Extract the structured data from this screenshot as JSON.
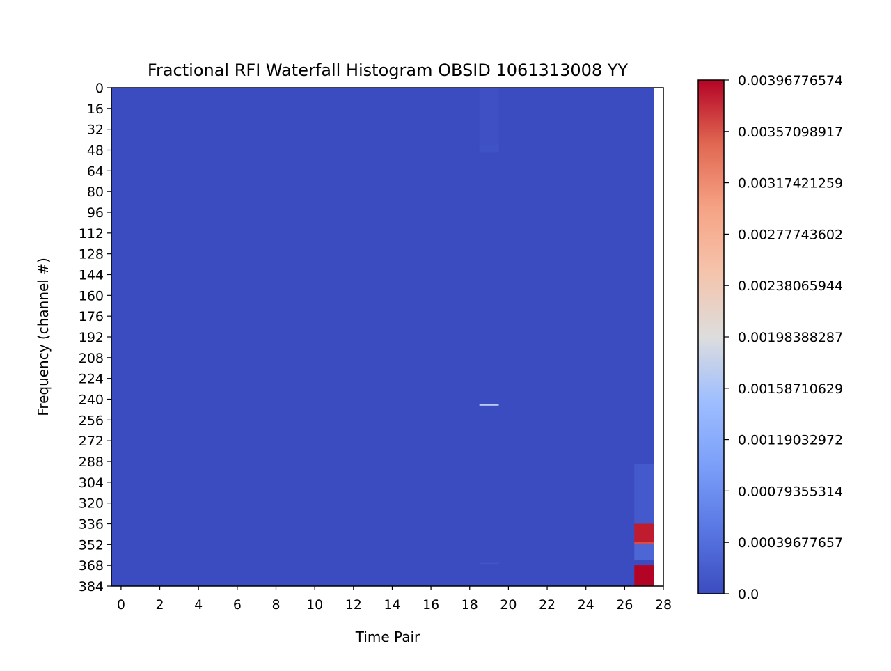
{
  "chart_data": {
    "type": "heatmap",
    "title": "Fractional RFI Waterfall Histogram OBSID 1061313008 YY",
    "xlabel": "Time Pair",
    "ylabel": "Frequency (channel #)",
    "x_ticks": [
      "0",
      "2",
      "4",
      "6",
      "8",
      "10",
      "12",
      "14",
      "16",
      "18",
      "20",
      "22",
      "24",
      "26",
      "28"
    ],
    "y_ticks": [
      "0",
      "16",
      "32",
      "48",
      "64",
      "80",
      "96",
      "112",
      "128",
      "144",
      "160",
      "176",
      "192",
      "208",
      "224",
      "240",
      "256",
      "272",
      "288",
      "304",
      "320",
      "336",
      "352",
      "368",
      "384"
    ],
    "xlim": [
      -0.5,
      28
    ],
    "ylim": [
      384,
      0
    ],
    "n_time_pairs": 28,
    "n_channels": 384,
    "colormap": "coolwarm",
    "colorbar": {
      "min": 0.0,
      "max": 0.00396776574,
      "ticks": [
        "0.0",
        "0.00039677657",
        "0.00079355314",
        "0.00119032972",
        "0.00158710629",
        "0.00198388287",
        "0.00238065944",
        "0.00277743602",
        "0.00317421259",
        "0.00357098917",
        "0.00396776574"
      ]
    },
    "background_value": 0.0,
    "cells": [
      {
        "time_pair": 19,
        "channel_start": 0,
        "channel_end": 48,
        "value": 5e-05
      },
      {
        "time_pair": 19,
        "channel_start": 44,
        "channel_end": 50,
        "value": 8e-05
      },
      {
        "time_pair": 19,
        "channel_start": 244,
        "channel_end": 245,
        "value": 0.0017
      },
      {
        "time_pair": 19,
        "channel_start": 366,
        "channel_end": 367,
        "value": 0.0001
      },
      {
        "time_pair": 27,
        "channel_start": 290,
        "channel_end": 336,
        "value": 0.00015
      },
      {
        "time_pair": 27,
        "channel_start": 336,
        "channel_end": 350,
        "value": 0.00385
      },
      {
        "time_pair": 27,
        "channel_start": 350,
        "channel_end": 352,
        "value": 0.0036
      },
      {
        "time_pair": 27,
        "channel_start": 352,
        "channel_end": 364,
        "value": 0.0003
      },
      {
        "time_pair": 27,
        "channel_start": 368,
        "channel_end": 384,
        "value": 0.00396776574
      }
    ]
  }
}
